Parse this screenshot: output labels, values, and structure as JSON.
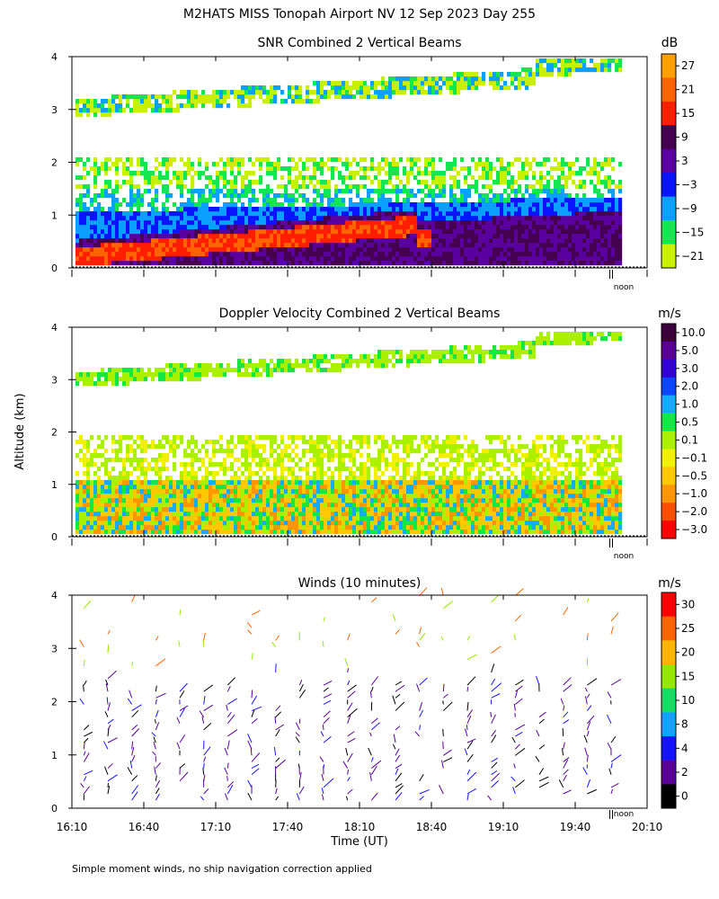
{
  "title": "M2HATS MISS Tonopah Airport NV  12 Sep 2023 Day 255",
  "y_axis_label": "Altitude (km)",
  "x_axis_label": "Time (UT)",
  "footnote": "Simple moment winds, no ship navigation correction applied",
  "noon_marker": "noon",
  "chart_data": [
    {
      "type": "heatmap",
      "title": "SNR Combined 2 Vertical Beams",
      "ylabel": "Altitude (km)",
      "xlim": [
        "16:10",
        "20:10"
      ],
      "ylim": [
        0,
        4
      ],
      "y_ticks": [
        "0",
        "1",
        "2",
        "3",
        "4"
      ],
      "colorbar": {
        "unit": "dB",
        "labels": [
          "27",
          "21",
          "15",
          "9",
          "3",
          "−3",
          "−9",
          "−15",
          "−21"
        ],
        "colors": [
          "#ffa000",
          "#ff6400",
          "#ff1e00",
          "#460050",
          "#5a00a0",
          "#0a14ff",
          "#0aa0ff",
          "#14e650",
          "#c8f000"
        ]
      },
      "data_range_max_time": "19:55"
    },
    {
      "type": "heatmap",
      "title": "Doppler Velocity Combined 2 Vertical Beams",
      "ylabel": "Altitude (km)",
      "xlim": [
        "16:10",
        "20:10"
      ],
      "ylim": [
        0,
        4
      ],
      "y_ticks": [
        "0",
        "1",
        "2",
        "3",
        "4"
      ],
      "colorbar": {
        "unit": "m/s",
        "labels": [
          "10.0",
          "5.0",
          "3.0",
          "2.0",
          "1.0",
          "0.5",
          "0.1",
          "−0.1",
          "−0.5",
          "−1.0",
          "−2.0",
          "−3.0"
        ],
        "colors": [
          "#3c003c",
          "#5a0096",
          "#3200d2",
          "#0a46ff",
          "#14aaff",
          "#14e646",
          "#aaf000",
          "#f0f000",
          "#ffc800",
          "#ff9600",
          "#ff5000",
          "#ff0000"
        ]
      },
      "data_range_max_time": "19:55"
    },
    {
      "type": "scatter",
      "title": "Winds (10 minutes)",
      "ylabel": "Altitude (km)",
      "xlabel": "Time (UT)",
      "xlim": [
        "16:10",
        "20:10"
      ],
      "ylim": [
        0,
        4
      ],
      "x_ticks": [
        "16:10",
        "16:40",
        "17:10",
        "17:40",
        "18:10",
        "18:40",
        "19:10",
        "19:40",
        "20:10"
      ],
      "y_ticks": [
        "0",
        "1",
        "2",
        "3",
        "4"
      ],
      "colorbar": {
        "unit": "m/s",
        "labels": [
          "30",
          "25",
          "20",
          "15",
          "10",
          "8",
          "4",
          "2",
          "0"
        ],
        "colors": [
          "#ff0000",
          "#ff6400",
          "#ffb400",
          "#96e600",
          "#14dc64",
          "#14a0ff",
          "#1414ff",
          "#5a0096",
          "#000000"
        ]
      },
      "profile_times": [
        "16:15",
        "16:25",
        "16:35",
        "16:45",
        "16:55",
        "17:05",
        "17:15",
        "17:25",
        "17:35",
        "17:45",
        "17:55",
        "18:05",
        "18:15",
        "18:25",
        "18:35",
        "18:45",
        "18:55",
        "19:05",
        "19:15",
        "19:25",
        "19:35",
        "19:45",
        "19:55"
      ]
    }
  ]
}
